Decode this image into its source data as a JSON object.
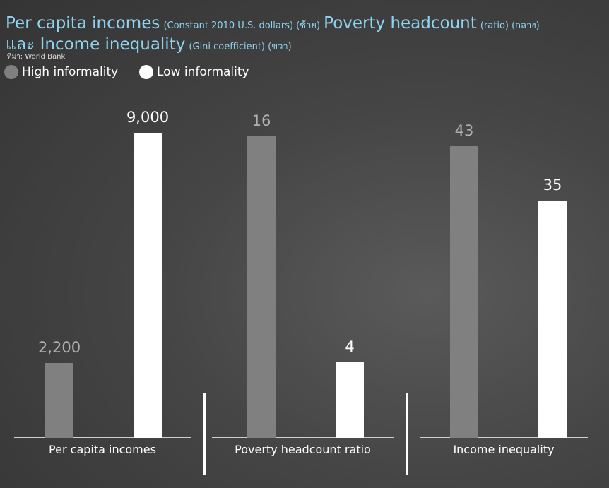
{
  "header": {
    "title_main": [
      "Per capita incomes",
      "Poverty headcount",
      "และ Income inequality"
    ],
    "title_notes": [
      "(Constant 2010 U.S. dollars) (ซ้าย)",
      "(ratio) (กลาง)",
      "(Gini coefficient) (ขวา)"
    ],
    "source": "ที่มา: World Bank"
  },
  "chart_data": [
    {
      "type": "bar",
      "categories": [
        "Per capita incomes"
      ],
      "ylim": [
        0,
        9000
      ],
      "series": [
        {
          "name": "High informality",
          "color": "#808080",
          "values": [
            2200
          ],
          "value_labels": [
            "2,200"
          ]
        },
        {
          "name": "Low informality",
          "color": "#ffffff",
          "values": [
            9000
          ],
          "value_labels": [
            "9,000"
          ]
        }
      ]
    },
    {
      "type": "bar",
      "categories": [
        "Poverty headcount ratio"
      ],
      "ylim": [
        0,
        16.2
      ],
      "series": [
        {
          "name": "High informality",
          "color": "#808080",
          "values": [
            16
          ]
        },
        {
          "name": "Low informality",
          "color": "#ffffff",
          "values": [
            4
          ]
        }
      ]
    },
    {
      "type": "bar",
      "categories": [
        "Income inequality"
      ],
      "ylim": [
        0,
        45
      ],
      "series": [
        {
          "name": "High informality",
          "color": "#808080",
          "values": [
            43
          ]
        },
        {
          "name": "Low informality",
          "color": "#ffffff",
          "values": [
            35
          ]
        }
      ]
    }
  ]
}
